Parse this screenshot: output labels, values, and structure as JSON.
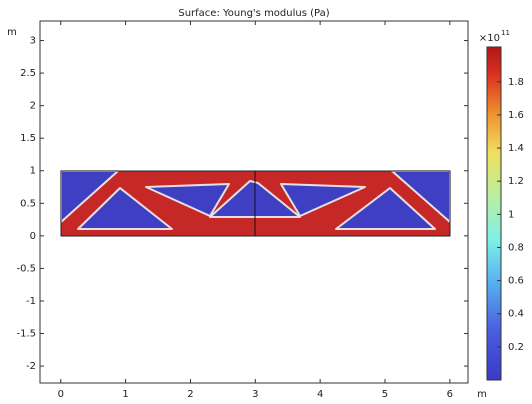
{
  "chart_data": {
    "type": "surface",
    "title": "Surface: Young's modulus (Pa)",
    "xlabel": "m",
    "ylabel": "m",
    "xlim": [
      -0.32,
      6.28
    ],
    "xticks": [
      0,
      1,
      2,
      3,
      4,
      5,
      6
    ],
    "ylim": [
      -2.26,
      3.3
    ],
    "yticks": [
      -2,
      -1.5,
      -1,
      -0.5,
      0,
      0.5,
      1,
      1.5,
      2,
      2.5,
      3
    ],
    "grid": false,
    "colorbar": {
      "lim": [
        0,
        2.01
      ],
      "ticks": [
        0.2,
        0.4,
        0.6,
        0.8,
        1,
        1.2,
        1.4,
        1.6,
        1.8
      ],
      "multiplier": "×10",
      "exponent": "11"
    }
  }
}
